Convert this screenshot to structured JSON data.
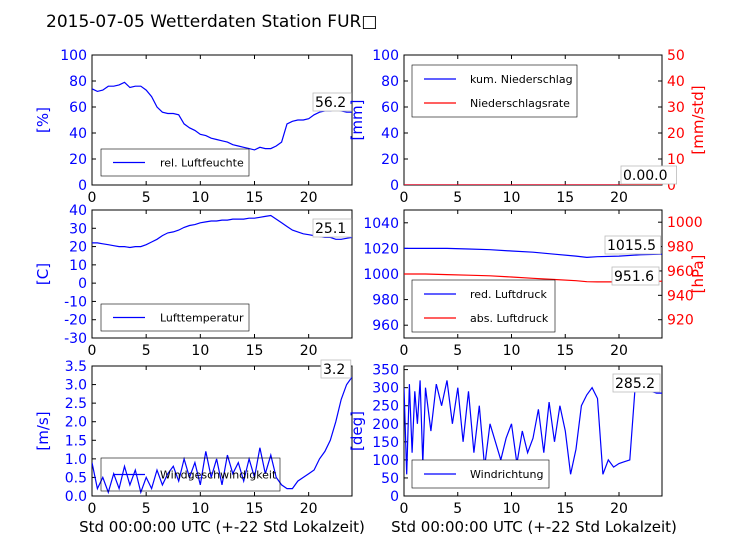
{
  "figure": {
    "title": "2015-07-05 Wetterdaten Station FUR□",
    "xlabel": "Std 00:00:00 UTC (+-22 Std Lokalzeit)"
  },
  "colors": {
    "blue": "#0000ff",
    "red": "#ff0000",
    "light_blue": "#8888ff"
  },
  "chart_data": [
    {
      "id": "humidity",
      "type": "line",
      "ylabel": "[%]",
      "ylim": [
        0,
        100
      ],
      "yticks": [
        0,
        20,
        40,
        60,
        80,
        100
      ],
      "xlim": [
        0,
        24
      ],
      "xticks": [
        0,
        5,
        10,
        15,
        20
      ],
      "legend": "bottom-left",
      "annotation": "56.2",
      "series": [
        {
          "name": "rel. Luftfeuchte",
          "color": "#0000ff",
          "x": [
            0,
            0.5,
            1,
            1.5,
            2,
            2.5,
            3,
            3.5,
            4,
            4.5,
            5,
            5.5,
            6,
            6.5,
            7,
            7.5,
            8,
            8.5,
            9,
            9.5,
            10,
            10.5,
            11,
            11.5,
            12,
            12.5,
            13,
            13.5,
            14,
            14.5,
            15,
            15.5,
            16,
            16.5,
            17,
            17.5,
            18,
            18.5,
            19,
            19.5,
            20,
            20.5,
            21,
            21.5,
            22,
            22.5,
            23,
            23.5,
            24
          ],
          "y": [
            74,
            72,
            73,
            76,
            76,
            77,
            79,
            75,
            76,
            76,
            73,
            68,
            60,
            56,
            55,
            55,
            54,
            47,
            44,
            42,
            39,
            38,
            36,
            35,
            34,
            33,
            31,
            30,
            29,
            28,
            27,
            29,
            28,
            28,
            30,
            33,
            47,
            49,
            50,
            50,
            51,
            54,
            56,
            57,
            57,
            58,
            57,
            56,
            56
          ]
        }
      ]
    },
    {
      "id": "precip",
      "type": "line",
      "ylabel": "[mm]",
      "ylabel2": "[mm/std]",
      "ylim": [
        0,
        100
      ],
      "ylim2": [
        0,
        50
      ],
      "yticks": [
        0,
        20,
        40,
        60,
        80,
        100
      ],
      "yticks2": [
        0,
        10,
        20,
        30,
        40,
        50
      ],
      "xlim": [
        0,
        24
      ],
      "xticks": [
        0,
        5,
        10,
        15,
        20
      ],
      "legend": "top-left",
      "annotation": "0.00.0",
      "series": [
        {
          "name": "kum. Niederschlag",
          "color": "#0000ff",
          "x": [
            0,
            24
          ],
          "y": [
            0,
            0
          ]
        },
        {
          "name": "Niederschlagsrate",
          "color": "#ff0000",
          "x": [
            0,
            24
          ],
          "y": [
            0,
            0
          ]
        }
      ]
    },
    {
      "id": "temperature",
      "type": "line",
      "ylabel": "[C]",
      "ylim": [
        -30,
        40
      ],
      "yticks": [
        -30,
        -20,
        -10,
        0,
        10,
        20,
        30,
        40
      ],
      "xlim": [
        0,
        24
      ],
      "xticks": [
        0,
        5,
        10,
        15,
        20
      ],
      "legend": "bottom-left",
      "annotation": "25.1",
      "series": [
        {
          "name": "Lufttemperatur",
          "color": "#0000ff",
          "x": [
            0,
            0.5,
            1,
            1.5,
            2,
            2.5,
            3,
            3.5,
            4,
            4.5,
            5,
            5.5,
            6,
            6.5,
            7,
            7.5,
            8,
            8.5,
            9,
            9.5,
            10,
            10.5,
            11,
            11.5,
            12,
            12.5,
            13,
            13.5,
            14,
            14.5,
            15,
            15.5,
            16,
            16.5,
            17,
            17.5,
            18,
            18.5,
            19,
            19.5,
            20,
            20.5,
            21,
            21.5,
            22,
            22.5,
            23,
            23.5,
            24
          ],
          "y": [
            22,
            22,
            21.5,
            21,
            20.5,
            20,
            20,
            19.5,
            20,
            20,
            21,
            22.5,
            24,
            26,
            27.5,
            28,
            29,
            30.5,
            31.5,
            32,
            33,
            33.5,
            34,
            34,
            34.5,
            34.5,
            35,
            35,
            35,
            35.5,
            35.5,
            36,
            36.5,
            37,
            35,
            33,
            31,
            29,
            28,
            27,
            26.5,
            26,
            25.5,
            25,
            25,
            24,
            24,
            24.5,
            25
          ]
        }
      ]
    },
    {
      "id": "pressure",
      "type": "line",
      "ylabel2": "[hPa]",
      "ylim": [
        950,
        1050
      ],
      "ylim2": [
        905,
        1010
      ],
      "yticks": [
        960,
        980,
        1000,
        1020,
        1040
      ],
      "yticks2": [
        920,
        940,
        960,
        980,
        1000
      ],
      "xlim": [
        0,
        24
      ],
      "xticks": [
        0,
        5,
        10,
        15,
        20
      ],
      "legend": "bottom-left",
      "annotations": [
        "1015.5",
        "951.6"
      ],
      "series": [
        {
          "name": "red. Luftdruck",
          "color": "#0000ff",
          "x": [
            0,
            2,
            4,
            6,
            8,
            10,
            12,
            14,
            16,
            17,
            18,
            20,
            22,
            24
          ],
          "y": [
            1020,
            1020,
            1020,
            1019.5,
            1019,
            1018,
            1017,
            1015.5,
            1014,
            1013,
            1013.5,
            1014,
            1015,
            1015.5
          ]
        },
        {
          "name": "abs. Luftdruck",
          "color": "#ff0000",
          "x": [
            0,
            2,
            4,
            6,
            8,
            10,
            12,
            14,
            16,
            17,
            18,
            20,
            22,
            24
          ],
          "y": [
            957.5,
            957.5,
            957,
            956.5,
            956,
            955,
            954,
            953,
            952,
            951.2,
            951,
            951,
            951.2,
            951.6
          ]
        }
      ]
    },
    {
      "id": "wind",
      "type": "line",
      "ylabel": "[m/s]",
      "ylim": [
        0,
        3.5
      ],
      "yticks": [
        0.0,
        0.5,
        1.0,
        1.5,
        2.0,
        2.5,
        3.0,
        3.5
      ],
      "xlim": [
        0,
        24
      ],
      "xticks": [
        0,
        5,
        10,
        15,
        20
      ],
      "legend": "bottom-left",
      "annotation": "3.2",
      "series": [
        {
          "name": "Windgeschwindigkeit",
          "color": "#0000ff",
          "x": [
            0,
            0.5,
            1,
            1.5,
            2,
            2.5,
            3,
            3.5,
            4,
            4.5,
            5,
            5.5,
            6,
            6.5,
            7,
            7.5,
            8,
            8.5,
            9,
            9.5,
            10,
            10.5,
            11,
            11.5,
            12,
            12.5,
            13,
            13.5,
            14,
            14.5,
            15,
            15.5,
            16,
            16.5,
            17,
            17.5,
            18,
            18.5,
            19,
            19.5,
            20,
            20.5,
            21,
            21.5,
            22,
            22.5,
            23,
            23.5,
            24
          ],
          "y": [
            0.9,
            0.2,
            0.5,
            0.1,
            0.6,
            0.2,
            0.8,
            0.3,
            0.7,
            0.1,
            0.5,
            0.2,
            0.7,
            0.3,
            0.6,
            0.8,
            0.4,
            1.0,
            0.5,
            0.9,
            0.3,
            1.2,
            0.5,
            1.0,
            0.3,
            1.1,
            0.6,
            0.9,
            0.4,
            1.0,
            0.5,
            1.3,
            0.6,
            1.1,
            0.5,
            0.3,
            0.2,
            0.2,
            0.4,
            0.5,
            0.6,
            0.7,
            1.0,
            1.2,
            1.5,
            2.0,
            2.6,
            3.0,
            3.2
          ]
        }
      ]
    },
    {
      "id": "direction",
      "type": "line",
      "ylabel": "[deg]",
      "ylim": [
        0,
        360
      ],
      "yticks": [
        0,
        50,
        100,
        150,
        200,
        250,
        300,
        350
      ],
      "xlim": [
        0,
        24
      ],
      "xticks": [
        0,
        5,
        10,
        15,
        20
      ],
      "legend": "bottom-left",
      "annotation": "285.2",
      "series": [
        {
          "name": "Windrichtung",
          "color": "#0000ff",
          "x": [
            0,
            0.25,
            0.5,
            0.75,
            1,
            1.25,
            1.5,
            1.75,
            2,
            2.5,
            3,
            3.5,
            4,
            4.5,
            5,
            5.5,
            6,
            6.5,
            7,
            7.5,
            8,
            8.5,
            9,
            9.5,
            10,
            10.5,
            11,
            11.5,
            12,
            12.5,
            13,
            13.5,
            14,
            14.5,
            15,
            15.5,
            16,
            16.5,
            17,
            17.5,
            18,
            18.5,
            19,
            19.5,
            20,
            20.5,
            21,
            21.5,
            22,
            22.5,
            23,
            23.5,
            24
          ],
          "y": [
            300,
            60,
            310,
            120,
            290,
            200,
            320,
            90,
            300,
            180,
            310,
            250,
            320,
            200,
            300,
            150,
            290,
            120,
            250,
            80,
            200,
            150,
            100,
            160,
            200,
            90,
            180,
            120,
            160,
            240,
            120,
            260,
            150,
            250,
            180,
            60,
            130,
            250,
            280,
            300,
            270,
            60,
            100,
            80,
            90,
            95,
            100,
            300,
            290,
            295,
            290,
            285,
            285
          ]
        }
      ]
    }
  ]
}
